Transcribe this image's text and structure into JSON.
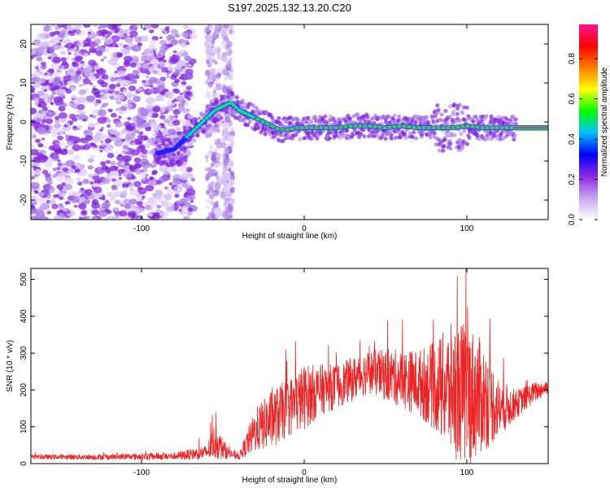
{
  "title": "S197.2025.132.13.20.C20",
  "chart_data": [
    {
      "type": "heatmap",
      "xlabel": "Height of straight line (km)",
      "ylabel": "Frequency (Hz)",
      "xlim": [
        -168,
        150
      ],
      "ylim": [
        -25,
        25
      ],
      "xticks": [
        -100,
        0,
        100
      ],
      "yticks": [
        -20,
        -10,
        0,
        10,
        20
      ],
      "colorbar": {
        "label": "Normalized spectral amplitude",
        "range": [
          0,
          0.97
        ],
        "ticks": [
          0.0,
          0.2,
          0.4,
          0.6,
          0.8
        ],
        "colors": [
          "#ffffff",
          "#c6a6ee",
          "#8a2be2",
          "#0000ff",
          "#00bfff",
          "#00ff00",
          "#ffff00",
          "#ff8000",
          "#ff0000",
          "#ff1493"
        ]
      },
      "ridge": {
        "x": [
          -90,
          -80,
          -75,
          -70,
          -65,
          -60,
          -55,
          -50,
          -45,
          -40,
          -35,
          -30,
          -25,
          -20,
          -15,
          -10,
          -5,
          0,
          10,
          20,
          30,
          40,
          50,
          60,
          70,
          80,
          90,
          100,
          110,
          120,
          130,
          140,
          150
        ],
        "y": [
          -8,
          -7,
          -5,
          -3,
          -1,
          1,
          3,
          4,
          5,
          3,
          2,
          1,
          0,
          -1,
          -2,
          -2,
          -1.5,
          -1.5,
          -1.5,
          -1.5,
          -1,
          -1,
          -1.5,
          -1,
          -1.5,
          -1.5,
          -1.5,
          -1,
          -1.5,
          -1.5,
          -1.5,
          -1.5,
          -1.5
        ]
      }
    },
    {
      "type": "line",
      "xlabel": "Height of straight line (km)",
      "ylabel": "SNR (10 * v/v)",
      "xlim": [
        -168,
        150
      ],
      "ylim": [
        0,
        530
      ],
      "xticks": [
        -100,
        0,
        100
      ],
      "yticks": [
        0,
        100,
        200,
        300,
        400,
        500
      ],
      "color": "#ee2222",
      "envelope": {
        "x": [
          -168,
          -120,
          -80,
          -60,
          -55,
          -50,
          -45,
          -40,
          -30,
          -20,
          -10,
          0,
          10,
          20,
          30,
          40,
          50,
          60,
          70,
          80,
          90,
          100,
          110,
          120,
          130,
          140,
          150
        ],
        "base": [
          18,
          18,
          20,
          30,
          60,
          40,
          25,
          20,
          90,
          120,
          150,
          180,
          200,
          210,
          230,
          250,
          240,
          230,
          220,
          210,
          200,
          190,
          180,
          150,
          160,
          190,
          210
        ],
        "spread": [
          6,
          8,
          10,
          20,
          50,
          30,
          10,
          10,
          60,
          80,
          80,
          90,
          70,
          60,
          60,
          60,
          70,
          80,
          90,
          120,
          180,
          200,
          150,
          80,
          40,
          30,
          20
        ]
      }
    }
  ]
}
